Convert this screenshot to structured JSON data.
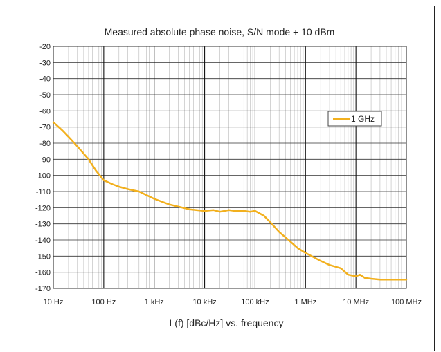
{
  "chart_data": {
    "type": "line",
    "title": "Measured absolute phase noise, S/N mode + 10 dBm",
    "xlabel": "L(f) [dBc/Hz] vs. frequency",
    "ylabel": "",
    "xscale": "log",
    "xlim": [
      10,
      100000000
    ],
    "ylim": [
      -170,
      -20
    ],
    "grid": true,
    "legend_position": "right-middle",
    "x_ticks": [
      10,
      100,
      1000,
      10000,
      100000,
      1000000,
      10000000,
      100000000
    ],
    "x_tick_labels": [
      "10 Hz",
      "100 Hz",
      "1 kHz",
      "10 kHz",
      "100 kHz",
      "1 MHz",
      "10 MHz",
      "100 MHz"
    ],
    "y_ticks": [
      -20,
      -30,
      -40,
      -50,
      -60,
      -70,
      -80,
      -90,
      -100,
      -110,
      -120,
      -130,
      -140,
      -150,
      -160,
      -170
    ],
    "y_tick_labels": [
      "-20",
      "-30",
      "-40",
      "-50",
      "-60",
      "-70",
      "-80",
      "-90",
      "-100",
      "-110",
      "-120",
      "-130",
      "-140",
      "-150",
      "-160",
      "-170"
    ],
    "series": [
      {
        "name": "1 GHz",
        "color": "#f2b01e",
        "x": [
          10,
          15,
          20,
          30,
          50,
          70,
          100,
          150,
          200,
          300,
          500,
          1000,
          2000,
          5000,
          10000,
          15000,
          20000,
          25000,
          30000,
          40000,
          60000,
          80000,
          100000,
          150000,
          200000,
          300000,
          500000,
          700000,
          1000000,
          2000000,
          3000000,
          5000000,
          7000000,
          10000000,
          12000000,
          15000000,
          20000000,
          30000000,
          50000000,
          100000000
        ],
        "y": [
          -67,
          -72,
          -76,
          -82,
          -90,
          -97,
          -103,
          -105.5,
          -107,
          -108.5,
          -110,
          -114.5,
          -118,
          -121,
          -122,
          -121.5,
          -122.5,
          -122,
          -121.5,
          -122,
          -122,
          -122.5,
          -122,
          -125,
          -129,
          -135,
          -141,
          -145,
          -148,
          -153,
          -155.5,
          -157.5,
          -161.5,
          -162.5,
          -161.5,
          -163.5,
          -164,
          -164.5,
          -164.5,
          -164.5
        ]
      }
    ]
  }
}
